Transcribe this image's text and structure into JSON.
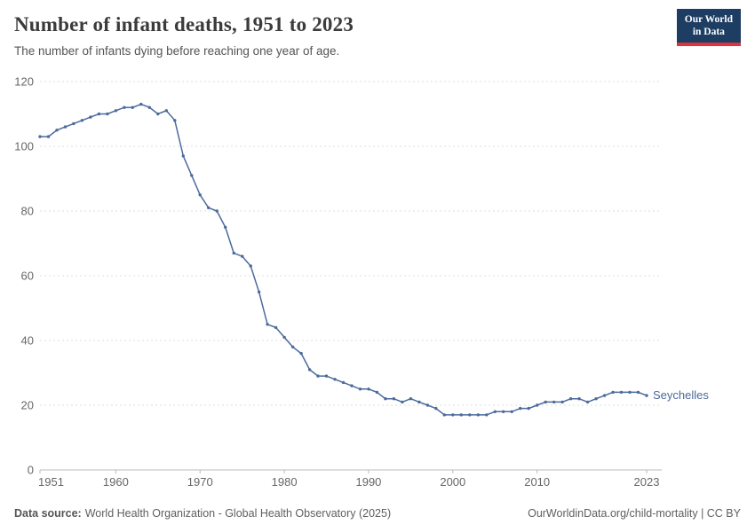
{
  "header": {
    "title": "Number of infant deaths, 1951 to 2023",
    "subtitle": "The number of infants dying before reaching one year of age.",
    "logo": {
      "line1": "Our World",
      "line2": "in Data"
    }
  },
  "chart_data": {
    "type": "line",
    "title": "Number of infant deaths, 1951 to 2023",
    "xlabel": "",
    "ylabel": "",
    "ylim": [
      0,
      120
    ],
    "yticks": [
      0,
      20,
      40,
      60,
      80,
      100,
      120
    ],
    "xticks": [
      1951,
      1960,
      1970,
      1980,
      1990,
      2000,
      2010,
      2023
    ],
    "grid": true,
    "legend_position": "end-of-line",
    "series": [
      {
        "name": "Seychelles",
        "color": "#4c6a9c",
        "x": [
          1951,
          1952,
          1953,
          1954,
          1955,
          1956,
          1957,
          1958,
          1959,
          1960,
          1961,
          1962,
          1963,
          1964,
          1965,
          1966,
          1967,
          1968,
          1969,
          1970,
          1971,
          1972,
          1973,
          1974,
          1975,
          1976,
          1977,
          1978,
          1979,
          1980,
          1981,
          1982,
          1983,
          1984,
          1985,
          1986,
          1987,
          1988,
          1989,
          1990,
          1991,
          1992,
          1993,
          1994,
          1995,
          1996,
          1997,
          1998,
          1999,
          2000,
          2001,
          2002,
          2003,
          2004,
          2005,
          2006,
          2007,
          2008,
          2009,
          2010,
          2011,
          2012,
          2013,
          2014,
          2015,
          2016,
          2017,
          2018,
          2019,
          2020,
          2021,
          2022,
          2023
        ],
        "values": [
          103,
          103,
          105,
          106,
          107,
          108,
          109,
          110,
          110,
          111,
          112,
          112,
          113,
          112,
          110,
          111,
          108,
          97,
          91,
          85,
          81,
          80,
          75,
          67,
          66,
          63,
          55,
          45,
          44,
          41,
          38,
          36,
          31,
          29,
          29,
          28,
          27,
          26,
          25,
          25,
          24,
          22,
          22,
          21,
          22,
          21,
          20,
          19,
          17,
          17,
          17,
          17,
          17,
          17,
          18,
          18,
          18,
          19,
          19,
          20,
          21,
          21,
          21,
          22,
          22,
          21,
          22,
          23,
          24,
          24,
          24,
          24,
          23
        ]
      }
    ]
  },
  "footer": {
    "datasource_label": "Data source:",
    "datasource_text": "World Health Organization - Global Health Observatory (2025)",
    "link_text": "OurWorldinData.org/child-mortality | CC BY"
  },
  "colors": {
    "line": "#4c6a9c",
    "grid": "#dddddd",
    "axis_text": "#666666",
    "logo_bg": "#1d3d63",
    "logo_accent": "#e0323c"
  }
}
